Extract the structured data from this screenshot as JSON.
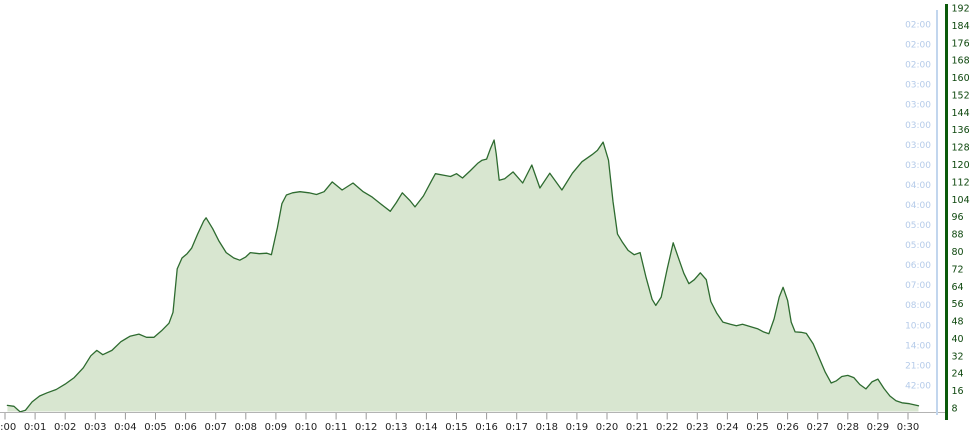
{
  "chart_data": {
    "type": "area",
    "title": "",
    "grid": false,
    "legend": false,
    "x_axis": {
      "tick_labels": [
        "0:00",
        "0:01",
        "0:02",
        "0:03",
        "0:04",
        "0:05",
        "0:06",
        "0:07",
        "0:08",
        "0:09",
        "0:10",
        "0:11",
        "0:12",
        "0:13",
        "0:14",
        "0:15",
        "0:16",
        "0:17",
        "0:18",
        "0:19",
        "0:20",
        "0:21",
        "0:22",
        "0:23",
        "0:24",
        "0:25",
        "0:26",
        "0:27",
        "0:28",
        "0:29",
        "0:30"
      ],
      "range_minutes": [
        0,
        31
      ],
      "label_color": "#1f1f1f",
      "tick_color": "#999999",
      "baseline_color": "#b3b3b3"
    },
    "right_axis_pace": {
      "labels": [
        "02:00",
        "02:00",
        "02:00",
        "03:00",
        "03:00",
        "03:00",
        "03:00",
        "03:00",
        "04:00",
        "04:00",
        "05:00",
        "05:00",
        "06:00",
        "07:00",
        "08:00",
        "10:00",
        "14:00",
        "21:00",
        "42:00"
      ],
      "text_color": "#b5cbe9",
      "line_color": "#c2d6ee"
    },
    "right_axis_value": {
      "min": 8,
      "max": 192,
      "step": 8,
      "text_color": "#0d470d",
      "line_color": "#0b5a0b"
    },
    "series": [
      {
        "name": "main-area-series",
        "type": "area",
        "fill": "#d8e6d0",
        "stroke": "#2e6b30",
        "points": [
          [
            0.08,
            9.2
          ],
          [
            0.3,
            8.8
          ],
          [
            0.5,
            6.2
          ],
          [
            0.68,
            7.0
          ],
          [
            0.9,
            10.8
          ],
          [
            1.15,
            13.5
          ],
          [
            1.4,
            15.0
          ],
          [
            1.7,
            16.5
          ],
          [
            2.0,
            19.0
          ],
          [
            2.3,
            22.0
          ],
          [
            2.6,
            26.5
          ],
          [
            2.85,
            32.0
          ],
          [
            3.05,
            34.5
          ],
          [
            3.25,
            32.5
          ],
          [
            3.55,
            34.5
          ],
          [
            3.85,
            38.5
          ],
          [
            4.15,
            41.0
          ],
          [
            4.45,
            42.0
          ],
          [
            4.7,
            40.5
          ],
          [
            4.95,
            40.5
          ],
          [
            5.2,
            43.5
          ],
          [
            5.45,
            47.0
          ],
          [
            5.58,
            52.0
          ],
          [
            5.72,
            72.0
          ],
          [
            5.88,
            77.0
          ],
          [
            6.05,
            79.0
          ],
          [
            6.2,
            81.5
          ],
          [
            6.4,
            88.0
          ],
          [
            6.6,
            94.0
          ],
          [
            6.68,
            95.5
          ],
          [
            6.9,
            90.5
          ],
          [
            7.1,
            85.0
          ],
          [
            7.35,
            79.5
          ],
          [
            7.6,
            77.0
          ],
          [
            7.8,
            76.0
          ],
          [
            8.0,
            77.5
          ],
          [
            8.15,
            79.5
          ],
          [
            8.45,
            79.0
          ],
          [
            8.7,
            79.2
          ],
          [
            8.85,
            78.5
          ],
          [
            9.05,
            91.0
          ],
          [
            9.2,
            102.0
          ],
          [
            9.35,
            106.0
          ],
          [
            9.55,
            107.0
          ],
          [
            9.8,
            107.5
          ],
          [
            10.1,
            107.0
          ],
          [
            10.35,
            106.2
          ],
          [
            10.6,
            107.5
          ],
          [
            10.87,
            112.0
          ],
          [
            11.2,
            108.3
          ],
          [
            11.56,
            111.5
          ],
          [
            11.9,
            107.5
          ],
          [
            12.2,
            105.0
          ],
          [
            12.56,
            101.0
          ],
          [
            12.8,
            98.5
          ],
          [
            13.0,
            102.5
          ],
          [
            13.2,
            107.0
          ],
          [
            13.45,
            103.5
          ],
          [
            13.62,
            100.5
          ],
          [
            13.9,
            105.5
          ],
          [
            14.15,
            112.0
          ],
          [
            14.3,
            115.8
          ],
          [
            14.6,
            115.0
          ],
          [
            14.8,
            114.5
          ],
          [
            15.0,
            115.8
          ],
          [
            15.2,
            113.8
          ],
          [
            15.45,
            117.0
          ],
          [
            15.7,
            120.5
          ],
          [
            15.85,
            122.0
          ],
          [
            16.0,
            122.5
          ],
          [
            16.12,
            127.0
          ],
          [
            16.25,
            131.3
          ],
          [
            16.32,
            125.0
          ],
          [
            16.42,
            112.8
          ],
          [
            16.6,
            113.5
          ],
          [
            16.88,
            116.6
          ],
          [
            17.2,
            111.5
          ],
          [
            17.5,
            119.8
          ],
          [
            17.77,
            109.2
          ],
          [
            18.1,
            116.0
          ],
          [
            18.5,
            108.3
          ],
          [
            18.85,
            116.0
          ],
          [
            19.17,
            121.3
          ],
          [
            19.5,
            124.5
          ],
          [
            19.68,
            126.5
          ],
          [
            19.87,
            130.3
          ],
          [
            20.05,
            122.0
          ],
          [
            20.2,
            103.0
          ],
          [
            20.35,
            88.0
          ],
          [
            20.5,
            84.5
          ],
          [
            20.7,
            80.5
          ],
          [
            20.9,
            78.5
          ],
          [
            21.1,
            79.5
          ],
          [
            21.3,
            68.0
          ],
          [
            21.5,
            58.0
          ],
          [
            21.62,
            55.2
          ],
          [
            21.8,
            59.0
          ],
          [
            22.0,
            72.0
          ],
          [
            22.2,
            84.0
          ],
          [
            22.35,
            78.0
          ],
          [
            22.55,
            70.0
          ],
          [
            22.72,
            65.2
          ],
          [
            22.9,
            67.0
          ],
          [
            23.1,
            70.2
          ],
          [
            23.3,
            67.0
          ],
          [
            23.45,
            57.0
          ],
          [
            23.65,
            51.5
          ],
          [
            23.85,
            47.5
          ],
          [
            24.1,
            46.5
          ],
          [
            24.3,
            45.8
          ],
          [
            24.5,
            46.5
          ],
          [
            24.75,
            45.5
          ],
          [
            25.0,
            44.5
          ],
          [
            25.2,
            43.0
          ],
          [
            25.38,
            42.2
          ],
          [
            25.55,
            49.0
          ],
          [
            25.72,
            59.0
          ],
          [
            25.85,
            63.5
          ],
          [
            26.0,
            57.5
          ],
          [
            26.12,
            47.5
          ],
          [
            26.25,
            43.0
          ],
          [
            26.45,
            42.8
          ],
          [
            26.62,
            42.3
          ],
          [
            26.85,
            37.5
          ],
          [
            27.05,
            31.0
          ],
          [
            27.25,
            24.5
          ],
          [
            27.45,
            19.5
          ],
          [
            27.62,
            20.5
          ],
          [
            27.8,
            22.5
          ],
          [
            28.0,
            23.0
          ],
          [
            28.2,
            22.0
          ],
          [
            28.4,
            18.8
          ],
          [
            28.6,
            16.8
          ],
          [
            28.8,
            20.0
          ],
          [
            29.0,
            21.3
          ],
          [
            29.2,
            17.0
          ],
          [
            29.4,
            13.5
          ],
          [
            29.6,
            11.3
          ],
          [
            29.8,
            10.4
          ],
          [
            30.05,
            10.0
          ],
          [
            30.35,
            9.0
          ]
        ]
      }
    ]
  },
  "colors": {
    "background": "#ffffff"
  }
}
